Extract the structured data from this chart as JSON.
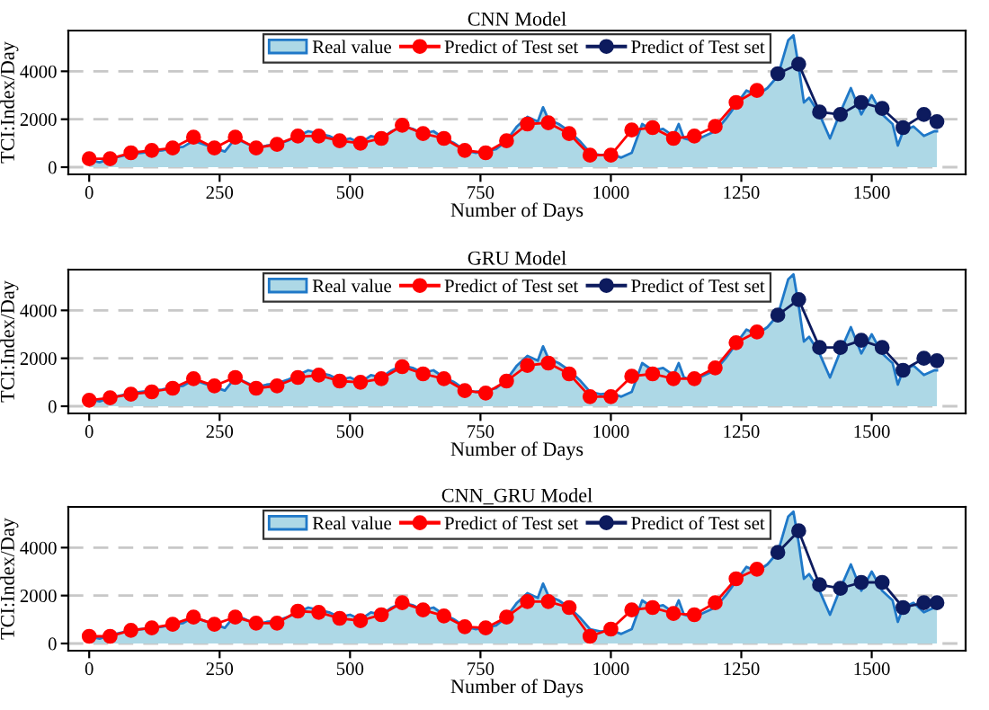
{
  "chart_data": [
    {
      "type": "line",
      "title": "CNN Model",
      "xlabel": "Number of Days",
      "ylabel": "TCI:Index/Day",
      "xlim": [
        -40,
        1680
      ],
      "xticks": [
        0,
        250,
        500,
        750,
        1000,
        1250,
        1500
      ],
      "ylim": [
        -300,
        5700
      ],
      "yticks": [
        0,
        2000,
        4000
      ],
      "grid": "y",
      "legend": "top",
      "series": [
        {
          "name": "Real value",
          "type": "area",
          "color": "#1f78c8",
          "x": [
            0,
            20,
            40,
            60,
            80,
            100,
            120,
            140,
            160,
            180,
            200,
            220,
            240,
            260,
            280,
            300,
            320,
            340,
            360,
            380,
            400,
            420,
            440,
            460,
            480,
            500,
            520,
            540,
            560,
            580,
            600,
            620,
            640,
            660,
            680,
            700,
            720,
            740,
            760,
            780,
            800,
            820,
            840,
            860,
            870,
            880,
            900,
            920,
            940,
            960,
            980,
            1000,
            1020,
            1040,
            1060,
            1080,
            1100,
            1120,
            1130,
            1140,
            1160,
            1180,
            1200,
            1220,
            1240,
            1260,
            1280,
            1300,
            1320,
            1340,
            1350,
            1360,
            1370,
            1380,
            1400,
            1420,
            1440,
            1460,
            1480,
            1500,
            1520,
            1540,
            1550,
            1560,
            1580,
            1600,
            1620,
            1625
          ],
          "values": [
            300,
            200,
            350,
            450,
            550,
            600,
            650,
            700,
            800,
            850,
            1100,
            950,
            800,
            650,
            1200,
            1000,
            800,
            900,
            950,
            1100,
            1300,
            1500,
            1400,
            1300,
            1100,
            1200,
            1000,
            1300,
            1200,
            1500,
            1700,
            1600,
            1400,
            1500,
            1200,
            1000,
            700,
            600,
            650,
            750,
            1100,
            1700,
            2100,
            1900,
            2500,
            2000,
            1800,
            1500,
            1100,
            600,
            500,
            550,
            400,
            600,
            1800,
            1500,
            1600,
            1300,
            1800,
            1200,
            1100,
            1300,
            1500,
            2000,
            2600,
            3200,
            3000,
            3300,
            3800,
            5300,
            5500,
            4200,
            2700,
            2900,
            2200,
            1200,
            2300,
            3300,
            2200,
            3000,
            2200,
            1800,
            900,
            1500,
            1700,
            1300,
            1500,
            1500
          ]
        },
        {
          "name": "Predict of Test set",
          "type": "line",
          "marker": "circle",
          "color": "#ff0000",
          "x": [
            0,
            40,
            80,
            120,
            160,
            200,
            240,
            280,
            320,
            360,
            400,
            440,
            480,
            520,
            560,
            600,
            640,
            680,
            720,
            760,
            800,
            840,
            880,
            920,
            960,
            1000,
            1040,
            1080,
            1120,
            1160,
            1200,
            1240,
            1280
          ],
          "values": [
            350,
            350,
            600,
            700,
            800,
            1250,
            800,
            1250,
            800,
            950,
            1300,
            1300,
            1100,
            1000,
            1200,
            1750,
            1400,
            1200,
            700,
            600,
            1100,
            1800,
            1850,
            1400,
            500,
            500,
            1550,
            1650,
            1200,
            1300,
            1700,
            2700,
            3200
          ]
        },
        {
          "name": "Predict of Test set",
          "type": "line",
          "marker": "circle",
          "color": "#0d1b5e",
          "x": [
            1320,
            1360,
            1400,
            1440,
            1480,
            1520,
            1560,
            1600,
            1625
          ],
          "values": [
            3900,
            4300,
            2300,
            2200,
            2700,
            2450,
            1650,
            2200,
            1900
          ]
        }
      ]
    },
    {
      "type": "line",
      "title": "GRU Model",
      "xlabel": "Number of Days",
      "ylabel": "TCI:Index/Day",
      "xlim": [
        -40,
        1680
      ],
      "xticks": [
        0,
        250,
        500,
        750,
        1000,
        1250,
        1500
      ],
      "ylim": [
        -300,
        5700
      ],
      "yticks": [
        0,
        2000,
        4000
      ],
      "grid": "y",
      "legend": "top",
      "series": [
        {
          "name": "Real value",
          "type": "area",
          "color": "#1f78c8",
          "x": [
            0,
            20,
            40,
            60,
            80,
            100,
            120,
            140,
            160,
            180,
            200,
            220,
            240,
            260,
            280,
            300,
            320,
            340,
            360,
            380,
            400,
            420,
            440,
            460,
            480,
            500,
            520,
            540,
            560,
            580,
            600,
            620,
            640,
            660,
            680,
            700,
            720,
            740,
            760,
            780,
            800,
            820,
            840,
            860,
            870,
            880,
            900,
            920,
            940,
            960,
            980,
            1000,
            1020,
            1040,
            1060,
            1080,
            1100,
            1120,
            1130,
            1140,
            1160,
            1180,
            1200,
            1220,
            1240,
            1260,
            1280,
            1300,
            1320,
            1340,
            1350,
            1360,
            1370,
            1380,
            1400,
            1420,
            1440,
            1460,
            1480,
            1500,
            1520,
            1540,
            1550,
            1560,
            1580,
            1600,
            1620,
            1625
          ],
          "values": [
            300,
            200,
            350,
            450,
            550,
            600,
            650,
            700,
            800,
            850,
            1100,
            950,
            800,
            650,
            1200,
            1000,
            800,
            900,
            950,
            1100,
            1300,
            1500,
            1400,
            1300,
            1100,
            1200,
            1000,
            1300,
            1200,
            1500,
            1700,
            1600,
            1400,
            1500,
            1200,
            1000,
            700,
            600,
            650,
            750,
            1100,
            1700,
            2100,
            1900,
            2500,
            2000,
            1800,
            1500,
            1100,
            600,
            500,
            550,
            400,
            600,
            1800,
            1500,
            1600,
            1300,
            1800,
            1200,
            1100,
            1300,
            1500,
            2000,
            2600,
            3200,
            3000,
            3300,
            3800,
            5300,
            5500,
            4200,
            2700,
            2900,
            2200,
            1200,
            2300,
            3300,
            2200,
            3000,
            2200,
            1800,
            900,
            1500,
            1700,
            1300,
            1500,
            1500
          ]
        },
        {
          "name": "Predict of Test set",
          "type": "line",
          "marker": "circle",
          "color": "#ff0000",
          "x": [
            0,
            40,
            80,
            120,
            160,
            200,
            240,
            280,
            320,
            360,
            400,
            440,
            480,
            520,
            560,
            600,
            640,
            680,
            720,
            760,
            800,
            840,
            880,
            920,
            960,
            1000,
            1040,
            1080,
            1120,
            1160,
            1200,
            1240,
            1280
          ],
          "values": [
            250,
            350,
            500,
            600,
            750,
            1150,
            850,
            1200,
            750,
            850,
            1200,
            1300,
            1050,
            1000,
            1150,
            1650,
            1350,
            1150,
            650,
            550,
            1050,
            1700,
            1800,
            1350,
            400,
            400,
            1250,
            1350,
            1150,
            1150,
            1600,
            2650,
            3100
          ]
        },
        {
          "name": "Predict of Test set",
          "type": "line",
          "marker": "circle",
          "color": "#0d1b5e",
          "x": [
            1320,
            1360,
            1400,
            1440,
            1480,
            1520,
            1560,
            1600,
            1625
          ],
          "values": [
            3800,
            4450,
            2450,
            2450,
            2750,
            2450,
            1500,
            2000,
            1900
          ]
        }
      ]
    },
    {
      "type": "line",
      "title": "CNN_GRU Model",
      "xlabel": "Number of Days",
      "ylabel": "TCI:Index/Day",
      "xlim": [
        -40,
        1680
      ],
      "xticks": [
        0,
        250,
        500,
        750,
        1000,
        1250,
        1500
      ],
      "ylim": [
        -300,
        5700
      ],
      "yticks": [
        0,
        2000,
        4000
      ],
      "grid": "y",
      "legend": "top",
      "series": [
        {
          "name": "Real value",
          "type": "area",
          "color": "#1f78c8",
          "x": [
            0,
            20,
            40,
            60,
            80,
            100,
            120,
            140,
            160,
            180,
            200,
            220,
            240,
            260,
            280,
            300,
            320,
            340,
            360,
            380,
            400,
            420,
            440,
            460,
            480,
            500,
            520,
            540,
            560,
            580,
            600,
            620,
            640,
            660,
            680,
            700,
            720,
            740,
            760,
            780,
            800,
            820,
            840,
            860,
            870,
            880,
            900,
            920,
            940,
            960,
            980,
            1000,
            1020,
            1040,
            1060,
            1080,
            1100,
            1120,
            1130,
            1140,
            1160,
            1180,
            1200,
            1220,
            1240,
            1260,
            1280,
            1300,
            1320,
            1340,
            1350,
            1360,
            1370,
            1380,
            1400,
            1420,
            1440,
            1460,
            1480,
            1500,
            1520,
            1540,
            1550,
            1560,
            1580,
            1600,
            1620,
            1625
          ],
          "values": [
            300,
            200,
            350,
            450,
            550,
            600,
            650,
            700,
            800,
            850,
            1100,
            950,
            800,
            650,
            1200,
            1000,
            800,
            900,
            950,
            1100,
            1300,
            1500,
            1400,
            1300,
            1100,
            1200,
            1000,
            1300,
            1200,
            1500,
            1700,
            1600,
            1400,
            1500,
            1200,
            1000,
            700,
            600,
            650,
            750,
            1100,
            1700,
            2100,
            1900,
            2500,
            2000,
            1800,
            1500,
            1100,
            600,
            500,
            550,
            400,
            600,
            1800,
            1500,
            1600,
            1300,
            1800,
            1200,
            1100,
            1300,
            1500,
            2000,
            2600,
            3200,
            3000,
            3300,
            3800,
            5300,
            5500,
            4200,
            2700,
            2900,
            2200,
            1200,
            2300,
            3300,
            2200,
            3000,
            2200,
            1800,
            900,
            1500,
            1700,
            1300,
            1500,
            1500
          ]
        },
        {
          "name": "Predict of Test set",
          "type": "line",
          "marker": "circle",
          "color": "#ff0000",
          "x": [
            0,
            40,
            80,
            120,
            160,
            200,
            240,
            280,
            320,
            360,
            400,
            440,
            480,
            520,
            560,
            600,
            640,
            680,
            720,
            760,
            800,
            840,
            880,
            920,
            960,
            1000,
            1040,
            1080,
            1120,
            1160,
            1200,
            1240,
            1280
          ],
          "values": [
            300,
            300,
            550,
            650,
            800,
            1100,
            800,
            1100,
            850,
            850,
            1350,
            1300,
            1050,
            950,
            1200,
            1700,
            1400,
            1150,
            700,
            650,
            1100,
            1750,
            1750,
            1500,
            300,
            600,
            1400,
            1500,
            1250,
            1200,
            1700,
            2700,
            3100
          ]
        },
        {
          "name": "Predict of Test set",
          "type": "line",
          "marker": "circle",
          "color": "#0d1b5e",
          "x": [
            1320,
            1360,
            1400,
            1440,
            1480,
            1520,
            1560,
            1600,
            1625
          ],
          "values": [
            3800,
            4700,
            2450,
            2300,
            2550,
            2550,
            1500,
            1700,
            1700
          ]
        }
      ]
    }
  ]
}
